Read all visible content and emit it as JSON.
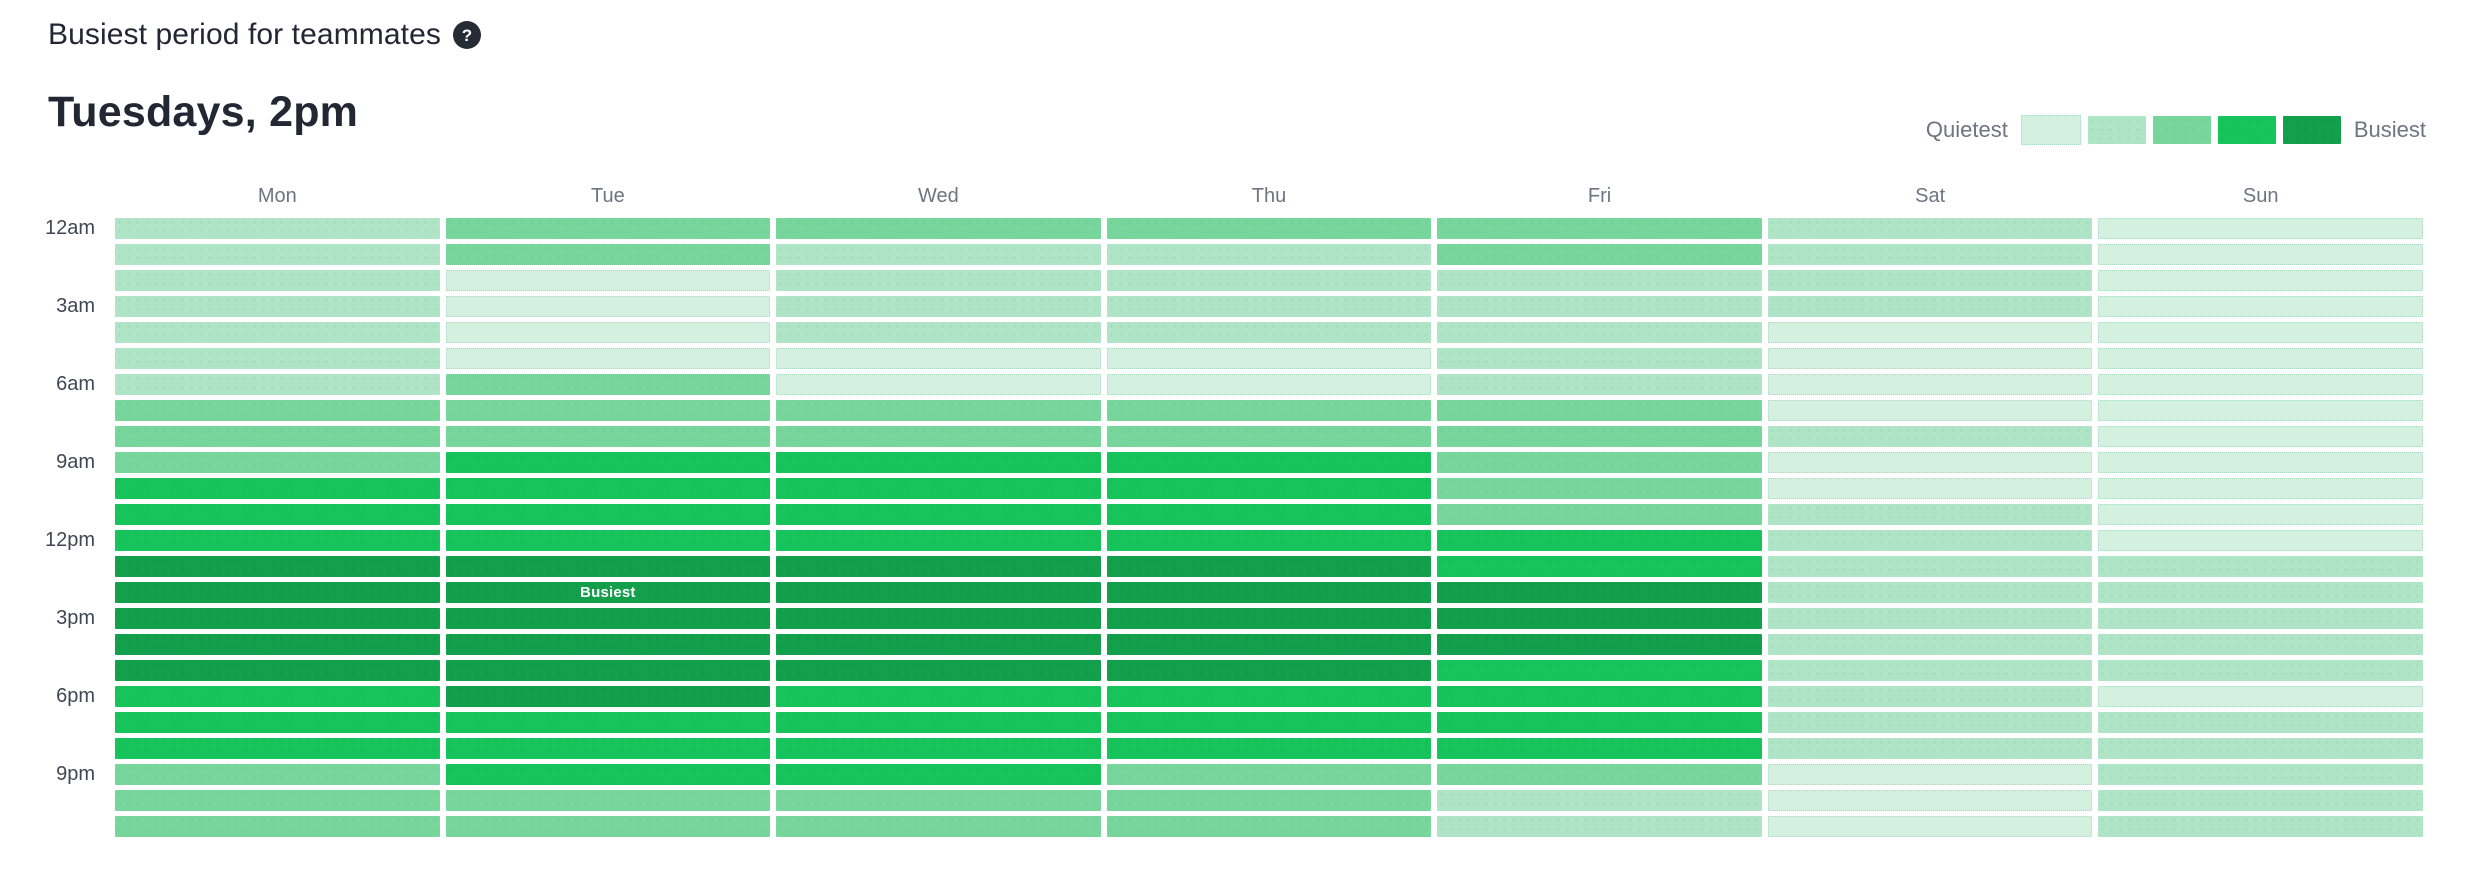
{
  "header": {
    "title": "Busiest period for teammates",
    "subtitle": "Tuesdays, 2pm"
  },
  "legend": {
    "min_label": "Quietest",
    "max_label": "Busiest",
    "level_colors": [
      "#d3f0e0",
      "#afe5c6",
      "#76d69c",
      "#16c45b",
      "#12a04c"
    ]
  },
  "chart_data": {
    "type": "heatmap",
    "title": "Busiest period for teammates",
    "subtitle": "Tuesdays, 2pm",
    "x_categories": [
      "Mon",
      "Tue",
      "Wed",
      "Thu",
      "Fri",
      "Sat",
      "Sun"
    ],
    "y_categories": [
      "12am",
      "1am",
      "2am",
      "3am",
      "4am",
      "5am",
      "6am",
      "7am",
      "8am",
      "9am",
      "10am",
      "11am",
      "12pm",
      "1pm",
      "2pm",
      "3pm",
      "4pm",
      "5pm",
      "6pm",
      "7pm",
      "8pm",
      "9pm",
      "10pm",
      "11pm"
    ],
    "y_ticks": [
      {
        "label": "12am",
        "row": 0
      },
      {
        "label": "3am",
        "row": 3
      },
      {
        "label": "6am",
        "row": 6
      },
      {
        "label": "9am",
        "row": 9
      },
      {
        "label": "12pm",
        "row": 12
      },
      {
        "label": "3pm",
        "row": 15
      },
      {
        "label": "6pm",
        "row": 18
      },
      {
        "label": "9pm",
        "row": 21
      }
    ],
    "scale": {
      "min_level": 1,
      "max_level": 5,
      "min_meaning": "Quietest",
      "max_meaning": "Busiest"
    },
    "series": [
      {
        "name": "Mon",
        "levels": [
          2,
          2,
          2,
          2,
          2,
          2,
          2,
          3,
          3,
          3,
          4,
          4,
          4,
          5,
          5,
          5,
          5,
          5,
          4,
          4,
          4,
          3,
          3,
          3
        ]
      },
      {
        "name": "Tue",
        "levels": [
          3,
          3,
          1,
          1,
          1,
          1,
          3,
          3,
          3,
          4,
          4,
          4,
          4,
          5,
          5,
          5,
          5,
          5,
          5,
          4,
          4,
          4,
          3,
          3
        ]
      },
      {
        "name": "Wed",
        "levels": [
          3,
          2,
          2,
          2,
          2,
          1,
          1,
          3,
          3,
          4,
          4,
          4,
          4,
          5,
          5,
          5,
          5,
          5,
          4,
          4,
          4,
          4,
          3,
          3
        ]
      },
      {
        "name": "Thu",
        "levels": [
          3,
          2,
          2,
          2,
          2,
          1,
          1,
          3,
          3,
          4,
          4,
          4,
          4,
          5,
          5,
          5,
          5,
          5,
          4,
          4,
          4,
          3,
          3,
          3
        ]
      },
      {
        "name": "Fri",
        "levels": [
          3,
          3,
          2,
          2,
          2,
          2,
          2,
          3,
          3,
          3,
          3,
          3,
          4,
          4,
          5,
          5,
          5,
          4,
          4,
          4,
          4,
          3,
          2,
          2
        ]
      },
      {
        "name": "Sat",
        "levels": [
          2,
          2,
          2,
          2,
          1,
          1,
          1,
          1,
          2,
          1,
          1,
          2,
          2,
          2,
          2,
          2,
          2,
          2,
          2,
          2,
          2,
          1,
          1,
          1
        ]
      },
      {
        "name": "Sun",
        "levels": [
          1,
          1,
          1,
          1,
          1,
          1,
          1,
          1,
          1,
          1,
          1,
          1,
          1,
          2,
          2,
          2,
          2,
          2,
          1,
          2,
          2,
          2,
          2,
          2
        ]
      }
    ],
    "busiest_annotation": {
      "day": "Tue",
      "hour": "2pm",
      "row": 14,
      "label": "Busiest"
    },
    "legend_position": "top-right",
    "grid": "off"
  }
}
